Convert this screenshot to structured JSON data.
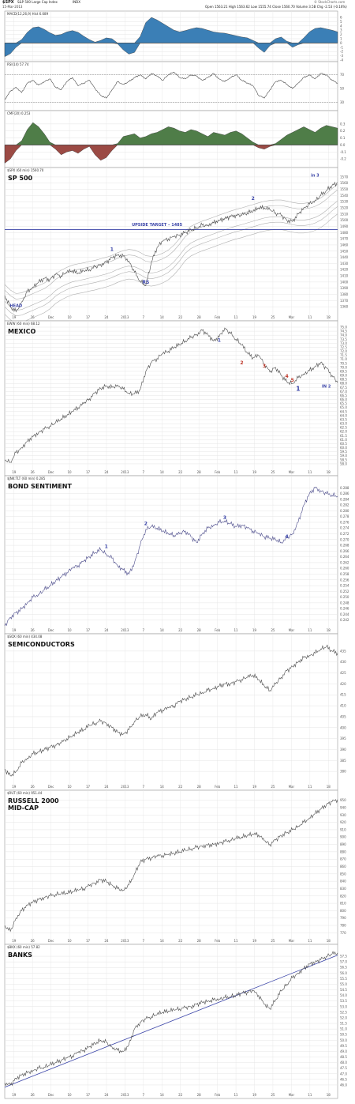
{
  "header": {
    "symbol": "$SPX",
    "name": "S&P 500 Large Cap Index",
    "exchange": "INDX",
    "date": "15-Mar-2013",
    "open_label": "Open",
    "open": "1563.21",
    "high_label": "High",
    "high": "1563.62",
    "low_label": "Low",
    "low": "1555.74",
    "close_label": "Close",
    "close": "1560.70",
    "volume_label": "Volume",
    "volume": "3.5B",
    "chg_label": "Chg",
    "chg": "-2.53 (-0.16%)",
    "watermark": "© StockCharts.com"
  },
  "x_axis_labels": [
    "19",
    "26",
    "Dec",
    "10",
    "17",
    "24",
    "2013",
    "7",
    "14",
    "22",
    "28",
    "Feb",
    "11",
    "19",
    "25",
    "Mar",
    "11",
    "18"
  ],
  "colors": {
    "macd_fill": "#3b7fb6",
    "cmf_positive": "#4f7d48",
    "cmf_negative": "#9b4a44",
    "price_line": "#4a4a4a",
    "sma_line": "#b0b0b0",
    "annotation": "#3b45a8",
    "wave_red": "#c0392b",
    "target_line": "#3b45a8",
    "grid": "#e4e4e4"
  },
  "chart_data": [
    {
      "type": "area",
      "indicator_label": "MACD(12,26,9) Hist 6.689",
      "ylim": [
        -4,
        6
      ],
      "y_ticks": [
        "6",
        "5",
        "4",
        "3",
        "2",
        "1",
        "0",
        "-1",
        "-2",
        "-3",
        "-4"
      ],
      "series": [
        {
          "values": [
            -3.2,
            -2.5,
            -1.0,
            0.8,
            2.5,
            3.6,
            3.8,
            3.2,
            2.4,
            1.8,
            2.0,
            2.6,
            2.9,
            2.5,
            1.6,
            0.8,
            0.2,
            0.6,
            1.2,
            1.0,
            -0.2,
            -1.6,
            -2.6,
            -2.2,
            1.5,
            4.8,
            6.0,
            5.4,
            4.6,
            3.8,
            3.0,
            2.6,
            2.9,
            3.3,
            3.6,
            3.4,
            3.0,
            2.6,
            2.4,
            2.3,
            2.0,
            1.7,
            1.4,
            1.2,
            0.6,
            -1.2,
            -2.2,
            -0.6,
            1.0,
            1.4,
            0.4,
            -1.0,
            -0.4,
            1.2,
            2.6,
            3.4,
            3.6,
            3.3,
            3.0,
            2.6
          ]
        }
      ]
    },
    {
      "type": "line",
      "indicator_label": "RSI(14) 57.74",
      "ylim": [
        20,
        80
      ],
      "y_ticks": [
        "70",
        "50",
        "30"
      ],
      "series": [
        {
          "values": [
            34,
            46,
            52,
            44,
            58,
            62,
            55,
            60,
            64,
            52,
            48,
            60,
            66,
            54,
            58,
            62,
            50,
            40,
            36,
            48,
            60,
            56,
            60,
            66,
            70,
            64,
            72,
            68,
            62,
            70,
            74,
            66,
            64,
            70,
            68,
            62,
            66,
            72,
            64,
            60,
            66,
            70,
            62,
            58,
            54,
            40,
            36,
            48,
            60,
            62,
            56,
            50,
            58,
            66,
            70,
            64,
            72,
            70,
            62,
            58
          ]
        }
      ]
    },
    {
      "type": "area",
      "indicator_label": "CMF(20) 0.253",
      "ylim": [
        -0.3,
        0.4
      ],
      "y_ticks": [
        "0.3",
        "0.2",
        "0.1",
        "0.0",
        "-0.1",
        "-0.2"
      ],
      "series": [
        {
          "values": [
            -0.26,
            -0.2,
            -0.08,
            0.06,
            0.22,
            0.32,
            0.26,
            0.16,
            0.04,
            -0.06,
            -0.14,
            -0.1,
            -0.08,
            -0.12,
            -0.06,
            -0.02,
            -0.14,
            -0.22,
            -0.18,
            -0.08,
            0.02,
            0.12,
            0.14,
            0.16,
            0.1,
            0.12,
            0.16,
            0.18,
            0.22,
            0.26,
            0.24,
            0.2,
            0.18,
            0.22,
            0.2,
            0.16,
            0.12,
            0.18,
            0.16,
            0.14,
            0.18,
            0.2,
            0.16,
            0.1,
            0.04,
            -0.04,
            -0.06,
            -0.02,
            0.02,
            0.08,
            0.14,
            0.18,
            0.22,
            0.26,
            0.22,
            0.18,
            0.24,
            0.28,
            0.26,
            0.24
          ]
        }
      ]
    },
    {
      "type": "line",
      "title": "SP 500",
      "legend": "$SPX (60 min) 1560.70",
      "ylim": [
        1350,
        1575
      ],
      "y_ticks": [
        "1570",
        "1560",
        "1550",
        "1540",
        "1530",
        "1520",
        "1510",
        "1500",
        "1490",
        "1480",
        "1470",
        "1460",
        "1450",
        "1440",
        "1430",
        "1420",
        "1410",
        "1400",
        "1390",
        "1380",
        "1370",
        "1360"
      ],
      "annotations": [
        {
          "text": "HEAD",
          "x": 2,
          "y": 1357
        },
        {
          "text": "1",
          "x": 19,
          "y": 1448
        },
        {
          "text": "RS",
          "x": 25,
          "y": 1395
        },
        {
          "text": "UPSIDE TARGET – 1485",
          "x": 27,
          "y": 1488
        },
        {
          "text": "2",
          "x": 44,
          "y": 1530
        },
        {
          "text": "in 3",
          "x": 55,
          "y": 1568
        }
      ],
      "target_line": 1485,
      "series": [
        {
          "values": [
            1378,
            1360,
            1352,
            1368,
            1384,
            1392,
            1400,
            1406,
            1404,
            1412,
            1410,
            1416,
            1418,
            1414,
            1418,
            1420,
            1424,
            1428,
            1432,
            1440,
            1444,
            1442,
            1434,
            1416,
            1402,
            1394,
            1432,
            1456,
            1466,
            1470,
            1473,
            1476,
            1480,
            1484,
            1488,
            1492,
            1492,
            1496,
            1500,
            1503,
            1506,
            1508,
            1508,
            1512,
            1514,
            1520,
            1520,
            1517,
            1512,
            1508,
            1500,
            1498,
            1510,
            1520,
            1526,
            1532,
            1540,
            1548,
            1556,
            1560
          ]
        }
      ]
    },
    {
      "type": "line",
      "title": "MEXICO",
      "legend": "EWW (60 min) 68.12",
      "ylim": [
        57.5,
        75.0
      ],
      "y_ticks": [
        "75.0",
        "74.5",
        "74.0",
        "73.5",
        "73.0",
        "72.5",
        "72.0",
        "71.5",
        "71.0",
        "70.5",
        "70.0",
        "69.5",
        "69.0",
        "68.5",
        "68.0",
        "67.5",
        "67.0",
        "66.5",
        "66.0",
        "65.5",
        "65.0",
        "64.5",
        "64.0",
        "63.5",
        "63.0",
        "62.5",
        "62.0",
        "61.5",
        "61.0",
        "60.5",
        "60.0",
        "59.5",
        "59.0",
        "58.5",
        "58.0"
      ],
      "annotations": [
        {
          "text": "1",
          "x": 38,
          "y": 73.0
        },
        {
          "text": "2",
          "x": 42,
          "y": 70.2
        },
        {
          "text": "3",
          "x": 46,
          "y": 69.8
        },
        {
          "text": "4",
          "x": 50,
          "y": 68.5
        },
        {
          "text": "5",
          "x": 51,
          "y": 68.0
        },
        {
          "text": "1",
          "x": 52,
          "y": 66.9
        },
        {
          "text": "IN 2",
          "x": 57,
          "y": 67.3
        }
      ],
      "series": [
        {
          "values": [
            58.5,
            58.2,
            59.4,
            60.0,
            60.8,
            61.4,
            61.9,
            62.3,
            62.7,
            63.1,
            63.6,
            64.0,
            64.5,
            65.0,
            65.5,
            66.1,
            66.8,
            67.4,
            67.7,
            67.5,
            67.8,
            67.3,
            66.8,
            66.7,
            67.2,
            69.5,
            70.6,
            71.1,
            71.7,
            72.0,
            72.5,
            72.8,
            73.3,
            73.7,
            74.1,
            74.6,
            74.1,
            73.3,
            73.8,
            74.9,
            74.2,
            73.5,
            72.8,
            71.8,
            71.2,
            71.5,
            70.4,
            69.4,
            70.0,
            69.0,
            68.2,
            68.0,
            68.7,
            69.2,
            69.6,
            70.1,
            70.6,
            69.9,
            69.0,
            68.1
          ]
        }
      ]
    },
    {
      "type": "line",
      "title": "BOND SENTIMENT",
      "legend": "$JNK:TLT (60 min) 0.285",
      "ylim": [
        0.24,
        0.29
      ],
      "y_ticks": [
        "0.288",
        "0.286",
        "0.284",
        "0.282",
        "0.280",
        "0.278",
        "0.276",
        "0.274",
        "0.272",
        "0.270",
        "0.268",
        "0.266",
        "0.264",
        "0.262",
        "0.260",
        "0.258",
        "0.256",
        "0.254",
        "0.252",
        "0.250",
        "0.248",
        "0.246",
        "0.244",
        "0.242"
      ],
      "annotations": [
        {
          "text": "1",
          "x": 18,
          "y": 0.2665
        },
        {
          "text": "2",
          "x": 25,
          "y": 0.2745
        },
        {
          "text": "3",
          "x": 39,
          "y": 0.2765
        },
        {
          "text": "4",
          "x": 50,
          "y": 0.27
        }
      ],
      "series": [
        {
          "values": [
            0.24,
            0.243,
            0.2445,
            0.246,
            0.248,
            0.25,
            0.251,
            0.2525,
            0.254,
            0.2555,
            0.257,
            0.2585,
            0.26,
            0.261,
            0.2625,
            0.264,
            0.2655,
            0.2665,
            0.265,
            0.2635,
            0.261,
            0.2595,
            0.258,
            0.262,
            0.268,
            0.2735,
            0.2745,
            0.274,
            0.273,
            0.272,
            0.2715,
            0.272,
            0.273,
            0.271,
            0.269,
            0.272,
            0.274,
            0.275,
            0.276,
            0.2765,
            0.2755,
            0.2745,
            0.275,
            0.274,
            0.273,
            0.272,
            0.271,
            0.2705,
            0.27,
            0.269,
            0.2705,
            0.272,
            0.276,
            0.282,
            0.286,
            0.288,
            0.287,
            0.286,
            0.2855,
            0.285
          ]
        }
      ]
    },
    {
      "type": "line",
      "title": "SEMICONDUCTORS",
      "legend": "$SOX (60 min) 434.08",
      "ylim": [
        375,
        440
      ],
      "y_ticks": [
        "435",
        "430",
        "425",
        "420",
        "415",
        "410",
        "405",
        "400",
        "395",
        "390",
        "385",
        "380"
      ],
      "series": [
        {
          "values": [
            381,
            378,
            380,
            384,
            386,
            388,
            389,
            390,
            391,
            392,
            393,
            395,
            396,
            398,
            399,
            401,
            402,
            403,
            402,
            400,
            398,
            397,
            399,
            403,
            405,
            406,
            404,
            407,
            408,
            409,
            410,
            412,
            413,
            414,
            415,
            416,
            417,
            418,
            419,
            420,
            420,
            421,
            422,
            423,
            424,
            422,
            419,
            417,
            420,
            423,
            426,
            428,
            430,
            432,
            433,
            434,
            436,
            437,
            435,
            434
          ]
        }
      ]
    },
    {
      "type": "line",
      "title": "RUSSELL 2000\nMID-CAP",
      "legend": "$RUT (60 min) 951.44",
      "ylim": [
        765,
        955
      ],
      "y_ticks": [
        "950",
        "940",
        "930",
        "920",
        "910",
        "900",
        "890",
        "880",
        "870",
        "860",
        "850",
        "840",
        "830",
        "820",
        "810",
        "800",
        "790",
        "780",
        "770"
      ],
      "series": [
        {
          "values": [
            780,
            772,
            790,
            800,
            808,
            812,
            815,
            818,
            820,
            822,
            823,
            824,
            826,
            828,
            830,
            834,
            838,
            842,
            840,
            835,
            830,
            828,
            835,
            850,
            866,
            870,
            872,
            874,
            875,
            876,
            878,
            880,
            882,
            884,
            886,
            888,
            889,
            890,
            892,
            894,
            896,
            898,
            900,
            902,
            904,
            903,
            895,
            890,
            896,
            902,
            906,
            910,
            915,
            920,
            926,
            932,
            938,
            944,
            948,
            951
          ]
        }
      ]
    },
    {
      "type": "line",
      "title": "BANKS",
      "legend": "$BKX (60 min) 57.82",
      "ylim": [
        45.5,
        58.0
      ],
      "y_ticks": [
        "57.5",
        "57.0",
        "56.5",
        "56.0",
        "55.5",
        "55.0",
        "54.5",
        "54.0",
        "53.5",
        "53.0",
        "52.5",
        "52.0",
        "51.5",
        "51.0",
        "50.5",
        "50.0",
        "49.5",
        "49.0",
        "48.5",
        "48.0",
        "47.5",
        "47.0",
        "46.5",
        "46.0"
      ],
      "trendline": [
        45.8,
        57.6
      ],
      "series": [
        {
          "values": [
            46.2,
            46.0,
            46.6,
            46.9,
            47.1,
            47.3,
            47.5,
            47.6,
            47.8,
            48.0,
            48.2,
            48.4,
            48.6,
            48.9,
            49.1,
            49.4,
            49.7,
            50.0,
            49.8,
            49.4,
            49.1,
            49.0,
            49.6,
            51.0,
            51.6,
            51.9,
            52.1,
            52.3,
            52.5,
            52.6,
            52.7,
            52.8,
            52.9,
            53.0,
            53.2,
            53.4,
            53.5,
            53.6,
            53.7,
            53.8,
            53.9,
            54.0,
            54.2,
            54.3,
            54.4,
            54.0,
            53.2,
            52.8,
            53.6,
            54.4,
            55.0,
            55.6,
            56.0,
            56.4,
            56.8,
            57.0,
            57.2,
            57.5,
            57.7,
            57.8
          ]
        }
      ]
    }
  ]
}
